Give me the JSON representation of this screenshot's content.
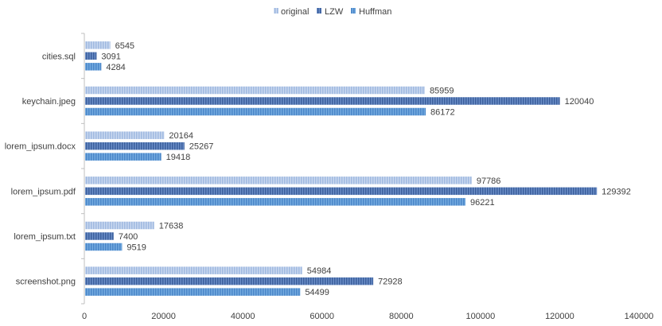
{
  "chart_data": {
    "type": "bar",
    "orientation": "horizontal",
    "categories": [
      "cities.sql",
      "keychain.jpeg",
      "lorem_ipsum.docx",
      "lorem_ipsum.pdf",
      "lorem_ipsum.txt",
      "screenshot.png"
    ],
    "series": [
      {
        "name": "original",
        "color": "#b4c7e7",
        "values": [
          6545,
          85959,
          20164,
          97786,
          17638,
          54984
        ]
      },
      {
        "name": "LZW",
        "color": "#4f76b5",
        "values": [
          3091,
          120040,
          25267,
          129392,
          7400,
          72928
        ]
      },
      {
        "name": "Huffman",
        "color": "#5b9bd5",
        "values": [
          4284,
          86172,
          19418,
          96221,
          9519,
          54499
        ]
      }
    ],
    "xlim": [
      0,
      140000
    ],
    "xticks": [
      0,
      20000,
      40000,
      60000,
      80000,
      100000,
      120000,
      140000
    ],
    "grid": false,
    "legend": "top-center",
    "data_labels": true
  }
}
